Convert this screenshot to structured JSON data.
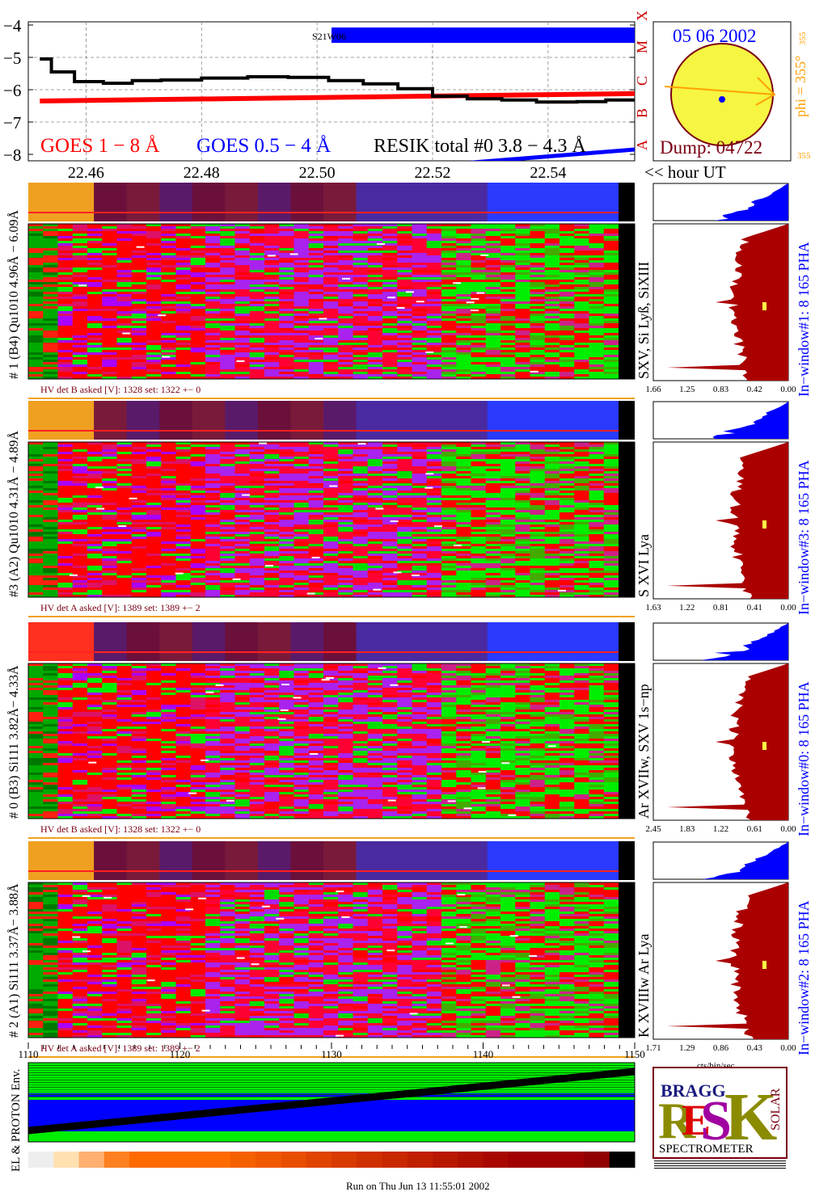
{
  "chart_data": {
    "type": "line",
    "title": "",
    "goes": {
      "ytick_labels": [
        "−4",
        "−5",
        "−6",
        "−7",
        "−8"
      ],
      "ylim": [
        -8.2,
        -3.9
      ],
      "class_labels": [
        "A",
        "B",
        "C",
        "M",
        "X"
      ],
      "xtick_labels": [
        "22.46",
        "22.48",
        "22.50",
        "22.52",
        "22.54"
      ],
      "xtick_values": [
        22.46,
        22.48,
        22.5,
        22.52,
        22.54
      ],
      "xlim": [
        22.45,
        22.555
      ],
      "xlabel": "<< hour UT",
      "legend": [
        "GOES 1 − 8 Å",
        "GOES 0.5 − 4 Å",
        "RESIK total #0  3.8 − 4.3 Å"
      ],
      "annotation": "S21W06",
      "series": [
        {
          "name": "GOES 1 − 8 Å",
          "color": "#ff0000",
          "x": [
            22.452,
            22.555
          ],
          "y": [
            -6.35,
            -6.12
          ]
        },
        {
          "name": "GOES 0.5 − 4 Å",
          "color": "#0000ff",
          "x": [
            22.52,
            22.555
          ],
          "y": [
            -8.35,
            -7.85
          ]
        },
        {
          "name": "RESIK total #0  3.8 − 4.3 Å",
          "color": "#000000",
          "x": [
            22.452,
            22.454,
            22.458,
            22.463,
            22.468,
            22.473,
            22.48,
            22.488,
            22.495,
            22.502,
            22.508,
            22.514,
            22.52,
            22.526,
            22.532,
            22.538,
            22.545,
            22.55,
            22.555
          ],
          "y": [
            -5.05,
            -5.45,
            -5.75,
            -5.8,
            -5.72,
            -5.7,
            -5.64,
            -5.6,
            -5.62,
            -5.72,
            -5.82,
            -5.97,
            -6.2,
            -6.28,
            -6.32,
            -6.38,
            -6.37,
            -6.32,
            -6.3
          ]
        }
      ]
    },
    "sun": {
      "date": "05 06 2002",
      "phi": "phi = 355°",
      "phi_small": "355",
      "phi_left": "355",
      "dump": "Dump: 04722"
    },
    "channels": [
      {
        "label": "# 1 (B4) Qu1010 4.96Å − 6.09Å",
        "line_label": "SXV, Si Lyß, SiXIII",
        "hv": "HV det B asked [V]:  1328 set:  1322  +−    0",
        "pha_label": "In−window#1:   8 165  PHA",
        "xticks": [
          "1.66",
          "1.25",
          "0.83",
          "0.42",
          "0.00"
        ]
      },
      {
        "label": "#3 (A2) Qu1010  4.31Å − 4.89Å",
        "line_label": "S XVI Lya",
        "hv": "HV det A asked [V]:  1389 set:  1389  +−    2",
        "pha_label": "In−window#3:   8 165 PHA",
        "xticks": [
          "1.63",
          "1.22",
          "0.81",
          "0.41",
          "0.00"
        ]
      },
      {
        "label": "# 0 (B3) Si111  3.82Å− 4.33Å",
        "line_label": "Ar XVIIw,  SXV 1s−np",
        "hv": "HV det B asked [V]:  1328 set:  1322  +−    0",
        "pha_label": "In−window#0:   8 165  PHA",
        "xticks": [
          "2.45",
          "1.83",
          "1.22",
          "0.61",
          "0.00"
        ]
      },
      {
        "label": "# 2 (A1) Si111  3.37Å− 3.88Å",
        "line_label": "K XVIIIw  Ar Lya",
        "hv": "HV det A asked [V]:  1389 set:  1389  +−    2",
        "pha_label": "In−window#2:   8 165  PHA",
        "xticks": [
          "1.71",
          "1.29",
          "0.86",
          "0.43",
          "0.00"
        ]
      }
    ],
    "spectrum_xticks": [
      "1110",
      "1120",
      "1130",
      "1140",
      "1150"
    ],
    "spectrum_xlabel": "cts/bin/sec",
    "proton_label": "EL & PROTON Env.",
    "footer": "Run on Thu Jun 13 11:55:01 2002",
    "logo": {
      "spectrometer": "SPECTROMETER",
      "bragg": "BRAGG",
      "solar": "SOLAR",
      "resik": "RESIK"
    },
    "colors": {
      "red": "#ff0000",
      "blue": "#0000ff",
      "darkred": "#aa0000",
      "orange": "#ff8c00",
      "green": "#00ee00",
      "violet": "#9b30ff",
      "yellow": "#ffff44"
    }
  }
}
